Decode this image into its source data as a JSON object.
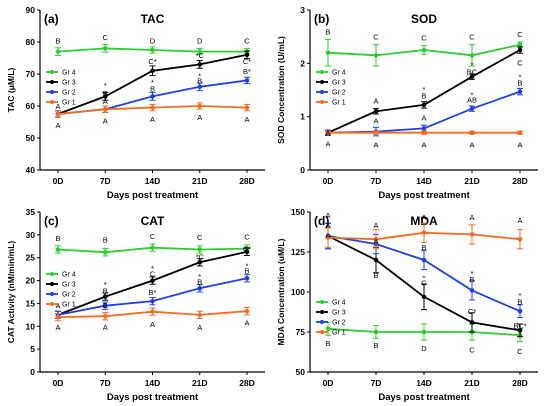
{
  "colors": {
    "Gr 4": "#2ecc2e",
    "Gr 3": "#000000",
    "Gr 2": "#1f3fe6",
    "Gr 1": "#f26b21"
  },
  "chart_data": [
    {
      "type": "line",
      "panel_letter": "(a)",
      "title": "TAC",
      "xlabel": "Days post treatment",
      "ylabel": "TAC (μM/L)",
      "categories": [
        "0D",
        "7D",
        "14D",
        "21D",
        "28D"
      ],
      "ylim": [
        40,
        90
      ],
      "yticks": [
        40,
        50,
        60,
        70,
        80,
        90
      ],
      "legend_position": "left",
      "series": [
        {
          "name": "Gr 4",
          "values": [
            77,
            78,
            77.5,
            77,
            77
          ],
          "errors": [
            1.2,
            1.2,
            1,
            1,
            1
          ]
        },
        {
          "name": "Gr 3",
          "values": [
            57.5,
            63,
            71,
            73,
            76
          ],
          "errors": [
            1,
            1.2,
            1.5,
            1.2,
            1.2
          ]
        },
        {
          "name": "Gr 2",
          "values": [
            57.5,
            59,
            63,
            66,
            68
          ],
          "errors": [
            1,
            1,
            1.2,
            1.2,
            1
          ]
        },
        {
          "name": "Gr 1",
          "values": [
            57.5,
            59,
            59.5,
            60,
            59.5
          ],
          "errors": [
            1,
            1,
            1,
            1,
            1
          ]
        }
      ],
      "annotations": [
        {
          "text": "B",
          "x": "0D",
          "y": 80.5
        },
        {
          "text": "A",
          "x": "0D",
          "y": 60
        },
        {
          "text": "A",
          "x": "0D",
          "y": 54
        },
        {
          "text": "C",
          "x": "7D",
          "y": 81.5
        },
        {
          "text": "*",
          "x": "7D",
          "y": 66.5
        },
        {
          "text": "B",
          "x": "7D",
          "y": 64
        },
        {
          "text": "A",
          "x": "7D",
          "y": 61.5
        },
        {
          "text": "A",
          "x": "7D",
          "y": 55.5
        },
        {
          "text": "D",
          "x": "14D",
          "y": 80.5
        },
        {
          "text": "C*",
          "x": "14D",
          "y": 74
        },
        {
          "text": "*",
          "x": "14D",
          "y": 67.5
        },
        {
          "text": "B",
          "x": "14D",
          "y": 65.5
        },
        {
          "text": "A",
          "x": "14D",
          "y": 56
        },
        {
          "text": "D",
          "x": "21D",
          "y": 80.5
        },
        {
          "text": "*C",
          "x": "21D",
          "y": 76
        },
        {
          "text": "*",
          "x": "21D",
          "y": 69.5
        },
        {
          "text": "B",
          "x": "21D",
          "y": 68
        },
        {
          "text": "A",
          "x": "21D",
          "y": 56.5
        },
        {
          "text": "C",
          "x": "28D",
          "y": 80.5
        },
        {
          "text": "C*",
          "x": "28D",
          "y": 74
        },
        {
          "text": "B*",
          "x": "28D",
          "y": 71
        },
        {
          "text": "A",
          "x": "28D",
          "y": 56
        }
      ]
    },
    {
      "type": "line",
      "panel_letter": "(b)",
      "title": "SOD",
      "xlabel": "Days post treatment",
      "ylabel": "SOD Concentration (U/mL)",
      "categories": [
        "0D",
        "7D",
        "14D",
        "21D",
        "28D"
      ],
      "ylim": [
        0,
        3
      ],
      "yticks": [
        0,
        1,
        2,
        3
      ],
      "legend_position": "left",
      "series": [
        {
          "name": "Gr 4",
          "values": [
            2.2,
            2.15,
            2.25,
            2.15,
            2.35
          ],
          "errors": [
            0.25,
            0.2,
            0.08,
            0.2,
            0.05
          ]
        },
        {
          "name": "Gr 3",
          "values": [
            0.7,
            1.1,
            1.22,
            1.75,
            2.25
          ],
          "errors": [
            0.05,
            0.05,
            0.06,
            0.05,
            0.06
          ]
        },
        {
          "name": "Gr 2",
          "values": [
            0.7,
            0.72,
            0.78,
            1.15,
            1.47
          ],
          "errors": [
            0.05,
            0.08,
            0.06,
            0.05,
            0.06
          ]
        },
        {
          "name": "Gr 1",
          "values": [
            0.7,
            0.7,
            0.7,
            0.7,
            0.7
          ],
          "errors": [
            0.03,
            0.03,
            0.03,
            0.03,
            0.03
          ]
        }
      ],
      "annotations": [
        {
          "text": "B",
          "x": "0D",
          "y": 2.6
        },
        {
          "text": "A",
          "x": "0D",
          "y": 0.7
        },
        {
          "text": "A",
          "x": "0D",
          "y": 0.5
        },
        {
          "text": "C",
          "x": "7D",
          "y": 2.5
        },
        {
          "text": "A",
          "x": "7D",
          "y": 1.3
        },
        {
          "text": "A",
          "x": "7D",
          "y": 0.93
        },
        {
          "text": "A",
          "x": "7D",
          "y": 0.48
        },
        {
          "text": "C",
          "x": "14D",
          "y": 2.48
        },
        {
          "text": "*",
          "x": "14D",
          "y": 1.52
        },
        {
          "text": "B",
          "x": "14D",
          "y": 1.4
        },
        {
          "text": "A",
          "x": "14D",
          "y": 0.98
        },
        {
          "text": "A",
          "x": "14D",
          "y": 0.48
        },
        {
          "text": "C",
          "x": "21D",
          "y": 2.5
        },
        {
          "text": "*",
          "x": "21D",
          "y": 1.98
        },
        {
          "text": "BC",
          "x": "21D",
          "y": 1.85
        },
        {
          "text": "AB",
          "x": "21D",
          "y": 1.32
        },
        {
          "text": "*",
          "x": "21D",
          "y": 1.42
        },
        {
          "text": "A",
          "x": "21D",
          "y": 0.48
        },
        {
          "text": "C",
          "x": "28D",
          "y": 2.55
        },
        {
          "text": "C",
          "x": "28D",
          "y": 2.02
        },
        {
          "text": "*",
          "x": "28D",
          "y": 1.75
        },
        {
          "text": "B",
          "x": "28D",
          "y": 1.64
        },
        {
          "text": "A",
          "x": "28D",
          "y": 0.48
        }
      ]
    },
    {
      "type": "line",
      "panel_letter": "(c)",
      "title": "CAT",
      "xlabel": "Days post treatment",
      "ylabel": "CAT Activity (nM/min/mL)",
      "categories": [
        "0D",
        "7D",
        "14D",
        "21D",
        "28D"
      ],
      "ylim": [
        0,
        35
      ],
      "yticks": [
        0,
        5,
        10,
        15,
        20,
        25,
        30,
        35
      ],
      "legend_position": "left",
      "series": [
        {
          "name": "Gr 4",
          "values": [
            26.8,
            26.2,
            27.2,
            26.8,
            27
          ],
          "errors": [
            0.8,
            0.8,
            0.8,
            0.8,
            0.8
          ]
        },
        {
          "name": "Gr 3",
          "values": [
            12.5,
            16.5,
            20,
            24,
            26.3
          ],
          "errors": [
            0.8,
            0.8,
            0.8,
            0.8,
            0.8
          ]
        },
        {
          "name": "Gr 2",
          "values": [
            12.5,
            14.5,
            15.5,
            18.3,
            20.5
          ],
          "errors": [
            0.8,
            0.8,
            0.8,
            0.8,
            0.8
          ]
        },
        {
          "name": "Gr 1",
          "values": [
            12,
            12.2,
            13.2,
            12.5,
            13.3
          ],
          "errors": [
            0.8,
            0.8,
            0.8,
            0.8,
            0.8
          ]
        }
      ],
      "annotations": [
        {
          "text": "B",
          "x": "0D",
          "y": 29.3
        },
        {
          "text": "A",
          "x": "0D",
          "y": 14.5
        },
        {
          "text": "A",
          "x": "0D",
          "y": 9.8
        },
        {
          "text": "B",
          "x": "7D",
          "y": 29
        },
        {
          "text": "*",
          "x": "7D",
          "y": 19.3
        },
        {
          "text": "B",
          "x": "7D",
          "y": 17.8
        },
        {
          "text": "B",
          "x": "7D",
          "y": 14.7
        },
        {
          "text": "A",
          "x": "7D",
          "y": 9.8
        },
        {
          "text": "C",
          "x": "14D",
          "y": 29.8
        },
        {
          "text": "*",
          "x": "14D",
          "y": 22.8
        },
        {
          "text": "C",
          "x": "14D",
          "y": 21.5
        },
        {
          "text": "B*",
          "x": "14D",
          "y": 17.5
        },
        {
          "text": "A",
          "x": "14D",
          "y": 10.5
        },
        {
          "text": "C",
          "x": "21D",
          "y": 29.5
        },
        {
          "text": "*C",
          "x": "21D",
          "y": 25.3
        },
        {
          "text": "*",
          "x": "21D",
          "y": 21
        },
        {
          "text": "B",
          "x": "21D",
          "y": 19.8
        },
        {
          "text": "A",
          "x": "21D",
          "y": 9.8
        },
        {
          "text": "C",
          "x": "28D",
          "y": 29.6
        },
        {
          "text": "C*",
          "x": "28D",
          "y": 27
        },
        {
          "text": "*",
          "x": "28D",
          "y": 23.3
        },
        {
          "text": "B",
          "x": "28D",
          "y": 22.2
        },
        {
          "text": "A",
          "x": "28D",
          "y": 10.8
        }
      ]
    },
    {
      "type": "line",
      "panel_letter": "(d)",
      "title": "MDA",
      "xlabel": "Days post treatment",
      "ylabel": "MDA Concentration (uM/L)",
      "categories": [
        "0D",
        "7D",
        "14D",
        "21D",
        "28D"
      ],
      "ylim": [
        50,
        150
      ],
      "yticks": [
        50,
        75,
        100,
        125,
        150
      ],
      "legend_position": "left",
      "series": [
        {
          "name": "Gr 4",
          "values": [
            77,
            75,
            75,
            75,
            73
          ],
          "errors": [
            4,
            4,
            5,
            5,
            4
          ]
        },
        {
          "name": "Gr 3",
          "values": [
            135,
            120,
            97,
            81,
            76
          ],
          "errors": [
            8,
            8,
            8,
            6,
            4
          ]
        },
        {
          "name": "Gr 2",
          "values": [
            135,
            130,
            120,
            101,
            88
          ],
          "errors": [
            8,
            6,
            6,
            6,
            4
          ]
        },
        {
          "name": "Gr 1",
          "values": [
            134,
            133,
            137,
            136,
            133
          ],
          "errors": [
            6,
            6,
            6,
            6,
            6
          ]
        }
      ],
      "annotations": [
        {
          "text": "A",
          "x": "0D",
          "y": 148
        },
        {
          "text": "A",
          "x": "0D",
          "y": 142
        },
        {
          "text": "A",
          "x": "0D",
          "y": 135.5
        },
        {
          "text": "B",
          "x": "0D",
          "y": 68
        },
        {
          "text": "A",
          "x": "7D",
          "y": 142
        },
        {
          "text": "A",
          "x": "7D",
          "y": 132
        },
        {
          "text": "B",
          "x": "7D",
          "y": 110.5
        },
        {
          "text": "B",
          "x": "7D",
          "y": 67
        },
        {
          "text": "A",
          "x": "14D",
          "y": 147
        },
        {
          "text": "B",
          "x": "14D",
          "y": 128
        },
        {
          "text": "C",
          "x": "14D",
          "y": 106
        },
        {
          "text": "*",
          "x": "14D",
          "y": 109
        },
        {
          "text": "D",
          "x": "14D",
          "y": 65
        },
        {
          "text": "A",
          "x": "21D",
          "y": 147
        },
        {
          "text": "*",
          "x": "21D",
          "y": 112
        },
        {
          "text": "B",
          "x": "21D",
          "y": 108
        },
        {
          "text": "C*",
          "x": "21D",
          "y": 88
        },
        {
          "text": "C",
          "x": "21D",
          "y": 64
        },
        {
          "text": "A",
          "x": "28D",
          "y": 145
        },
        {
          "text": "*",
          "x": "28D",
          "y": 98
        },
        {
          "text": "B",
          "x": "28D",
          "y": 94
        },
        {
          "text": "BC*",
          "x": "28D",
          "y": 79
        },
        {
          "text": "C",
          "x": "28D",
          "y": 63
        }
      ]
    }
  ]
}
